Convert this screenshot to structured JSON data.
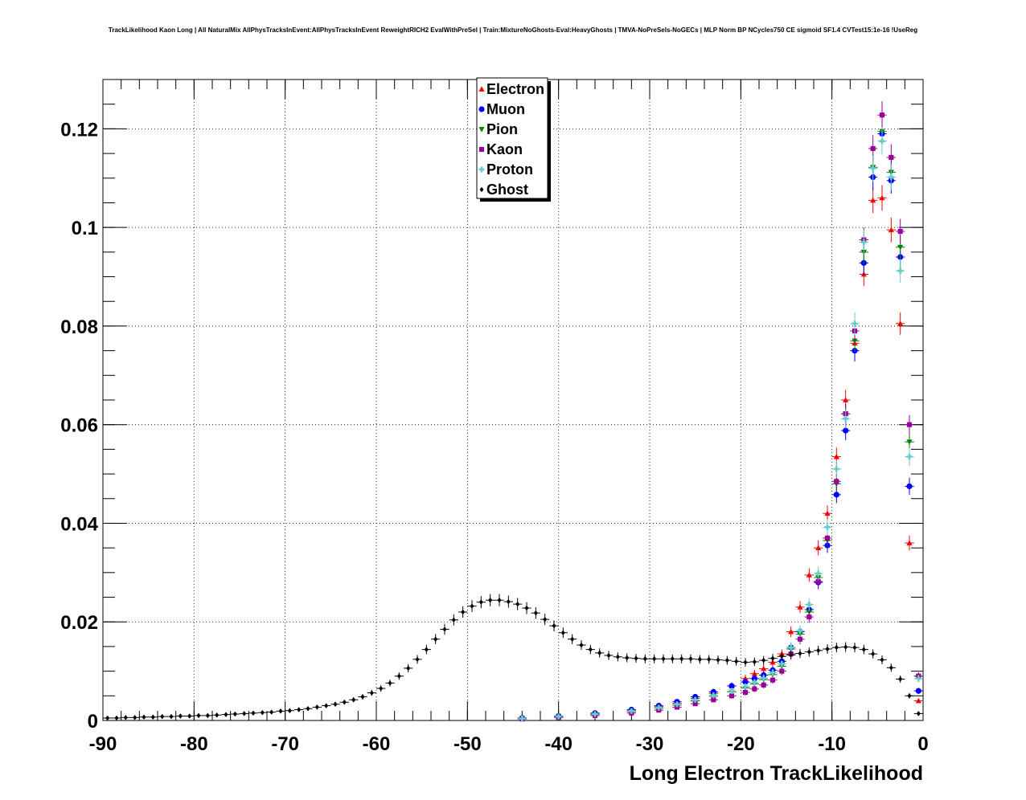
{
  "title": "TrackLikelihood Kaon Long | All NaturalMix AllPhysTracksInEvent:AllPhysTracksInEvent ReweightRICH2 EvalWithPreSel | Train:MixtureNoGhosts-Eval:HeavyGhosts | TMVA-NoPreSels-NoGECs | MLP Norm BP NCycles750 CE sigmoid SF1.4 CVTest15:1e-16 !UseReg",
  "chart_data": {
    "type": "scatter",
    "xlabel": "Long Electron TrackLikelihood",
    "ylabel": "",
    "xlim": [
      -90,
      0
    ],
    "ylim": [
      0,
      0.13
    ],
    "grid": true,
    "legend_position": "top-center",
    "x_ticks": [
      "-90",
      "-80",
      "-70",
      "-60",
      "-50",
      "-40",
      "-30",
      "-20",
      "-10",
      "0"
    ],
    "y_ticks": [
      "0",
      "0.02",
      "0.04",
      "0.06",
      "0.08",
      "0.1",
      "0.12"
    ],
    "series": [
      {
        "name": "Electron",
        "color": "#ff0000",
        "marker": "triangle-up",
        "x": [
          -44,
          -40,
          -36,
          -32,
          -29,
          -27,
          -25,
          -23,
          -21,
          -19.5,
          -18.5,
          -17.5,
          -16.5,
          -15.5,
          -14.5,
          -13.5,
          -12.5,
          -11.5,
          -10.5,
          -9.5,
          -8.5,
          -7.5,
          -6.5,
          -5.5,
          -4.5,
          -3.5,
          -2.5,
          -1.5,
          -0.5
        ],
        "y": [
          0.0005,
          0.0009,
          0.0014,
          0.002,
          0.0028,
          0.0035,
          0.0045,
          0.0055,
          0.007,
          0.0085,
          0.0095,
          0.0105,
          0.0118,
          0.0135,
          0.018,
          0.023,
          0.0295,
          0.035,
          0.042,
          0.0535,
          0.065,
          0.0765,
          0.0905,
          0.1055,
          0.106,
          0.0995,
          0.0805,
          0.036,
          0.004
        ]
      },
      {
        "name": "Muon",
        "color": "#0000ff",
        "marker": "circle",
        "x": [
          -44,
          -40,
          -36,
          -32,
          -29,
          -27,
          -25,
          -23,
          -21,
          -19.5,
          -18.5,
          -17.5,
          -16.5,
          -15.5,
          -14.5,
          -13.5,
          -12.5,
          -11.5,
          -10.5,
          -9.5,
          -8.5,
          -7.5,
          -6.5,
          -5.5,
          -4.5,
          -3.5,
          -2.5,
          -1.5,
          -0.5
        ],
        "y": [
          0.0005,
          0.0009,
          0.0015,
          0.0022,
          0.003,
          0.0038,
          0.0048,
          0.0058,
          0.007,
          0.0078,
          0.0085,
          0.0092,
          0.0102,
          0.012,
          0.0148,
          0.018,
          0.0225,
          0.028,
          0.0355,
          0.0458,
          0.0588,
          0.075,
          0.0928,
          0.1102,
          0.119,
          0.1095,
          0.094,
          0.0475,
          0.006
        ]
      },
      {
        "name": "Pion",
        "color": "#008000",
        "marker": "triangle-down",
        "x": [
          -44,
          -40,
          -36,
          -32,
          -29,
          -27,
          -25,
          -23,
          -21,
          -19.5,
          -18.5,
          -17.5,
          -16.5,
          -15.5,
          -14.5,
          -13.5,
          -12.5,
          -11.5,
          -10.5,
          -9.5,
          -8.5,
          -7.5,
          -6.5,
          -5.5,
          -4.5,
          -3.5,
          -2.5,
          -1.5,
          -0.5
        ],
        "y": [
          0.0004,
          0.0007,
          0.0012,
          0.0018,
          0.0025,
          0.0031,
          0.004,
          0.0049,
          0.0058,
          0.0066,
          0.0074,
          0.0083,
          0.0093,
          0.011,
          0.0145,
          0.0175,
          0.022,
          0.029,
          0.0365,
          0.048,
          0.0622,
          0.077,
          0.095,
          0.1122,
          0.1195,
          0.1112,
          0.096,
          0.0565,
          0.009
        ]
      },
      {
        "name": "Kaon",
        "color": "#990099",
        "marker": "square",
        "x": [
          -44,
          -40,
          -36,
          -32,
          -29,
          -27,
          -25,
          -23,
          -21,
          -19.5,
          -18.5,
          -17.5,
          -16.5,
          -15.5,
          -14.5,
          -13.5,
          -12.5,
          -11.5,
          -10.5,
          -9.5,
          -8.5,
          -7.5,
          -6.5,
          -5.5,
          -4.5,
          -3.5,
          -2.5,
          -1.5,
          -0.5
        ],
        "y": [
          0.0003,
          0.0006,
          0.001,
          0.0015,
          0.0021,
          0.0027,
          0.0034,
          0.0042,
          0.005,
          0.0057,
          0.0064,
          0.0072,
          0.0082,
          0.01,
          0.0135,
          0.0165,
          0.021,
          0.0282,
          0.037,
          0.0485,
          0.0622,
          0.079,
          0.0975,
          0.116,
          0.1228,
          0.1142,
          0.0992,
          0.06,
          0.009
        ]
      },
      {
        "name": "Proton",
        "color": "#66cccc",
        "marker": "plus",
        "x": [
          -44,
          -40,
          -36,
          -32,
          -29,
          -27,
          -25,
          -23,
          -21,
          -19.5,
          -18.5,
          -17.5,
          -16.5,
          -15.5,
          -14.5,
          -13.5,
          -12.5,
          -11.5,
          -10.5,
          -9.5,
          -8.5,
          -7.5,
          -6.5,
          -5.5,
          -4.5,
          -3.5,
          -2.5,
          -1.5,
          -0.5
        ],
        "y": [
          0.0004,
          0.0008,
          0.0013,
          0.0019,
          0.0026,
          0.0033,
          0.0042,
          0.0051,
          0.006,
          0.0069,
          0.0077,
          0.0086,
          0.0097,
          0.0115,
          0.0148,
          0.0182,
          0.0235,
          0.0298,
          0.0392,
          0.051,
          0.0612,
          0.0805,
          0.097,
          0.112,
          0.1175,
          0.1102,
          0.0912,
          0.0535,
          0.0085
        ]
      },
      {
        "name": "Ghost",
        "color": "#000000",
        "marker": "diamond",
        "x": [
          -89.5,
          -88.5,
          -87.5,
          -86.5,
          -85.5,
          -84.5,
          -83.5,
          -82.5,
          -81.5,
          -80.5,
          -79.5,
          -78.5,
          -77.5,
          -76.5,
          -75.5,
          -74.5,
          -73.5,
          -72.5,
          -71.5,
          -70.5,
          -69.5,
          -68.5,
          -67.5,
          -66.5,
          -65.5,
          -64.5,
          -63.5,
          -62.5,
          -61.5,
          -60.5,
          -59.5,
          -58.5,
          -57.5,
          -56.5,
          -55.5,
          -54.5,
          -53.5,
          -52.5,
          -51.5,
          -50.5,
          -49.5,
          -48.5,
          -47.5,
          -46.5,
          -45.5,
          -44.5,
          -43.5,
          -42.5,
          -41.5,
          -40.5,
          -39.5,
          -38.5,
          -37.5,
          -36.5,
          -35.5,
          -34.5,
          -33.5,
          -32.5,
          -31.5,
          -30.5,
          -29.5,
          -28.5,
          -27.5,
          -26.5,
          -25.5,
          -24.5,
          -23.5,
          -22.5,
          -21.5,
          -20.5,
          -19.5,
          -18.5,
          -17.5,
          -16.5,
          -15.5,
          -14.5,
          -13.5,
          -12.5,
          -11.5,
          -10.5,
          -9.5,
          -8.5,
          -7.5,
          -6.5,
          -5.5,
          -4.5,
          -3.5,
          -2.5,
          -1.5,
          -0.5
        ],
        "y": [
          0.0005,
          0.0005,
          0.0006,
          0.0006,
          0.0007,
          0.0007,
          0.0008,
          0.0008,
          0.0009,
          0.0009,
          0.001,
          0.001,
          0.0011,
          0.0012,
          0.0013,
          0.0014,
          0.0015,
          0.0016,
          0.0017,
          0.0019,
          0.002,
          0.0022,
          0.0024,
          0.0027,
          0.003,
          0.0033,
          0.0037,
          0.0042,
          0.0048,
          0.0056,
          0.0065,
          0.0076,
          0.009,
          0.0106,
          0.0124,
          0.0144,
          0.0165,
          0.0185,
          0.0204,
          0.022,
          0.0232,
          0.024,
          0.0244,
          0.0244,
          0.0241,
          0.0236,
          0.0228,
          0.0218,
          0.0205,
          0.0192,
          0.0178,
          0.0165,
          0.0153,
          0.0144,
          0.0137,
          0.0132,
          0.0129,
          0.0127,
          0.0126,
          0.0125,
          0.0125,
          0.0125,
          0.0125,
          0.0125,
          0.0125,
          0.0124,
          0.0124,
          0.0123,
          0.0122,
          0.012,
          0.0118,
          0.0119,
          0.0122,
          0.0126,
          0.013,
          0.0133,
          0.0136,
          0.0139,
          0.0142,
          0.0145,
          0.0148,
          0.0149,
          0.0148,
          0.0144,
          0.0135,
          0.0123,
          0.0107,
          0.0084,
          0.005,
          0.0014
        ]
      }
    ]
  }
}
